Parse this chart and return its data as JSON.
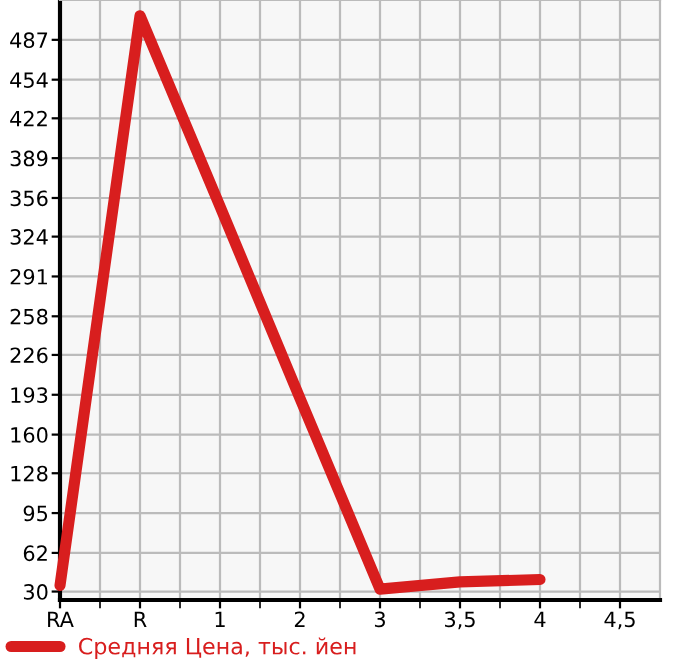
{
  "chart_data": {
    "type": "line",
    "categories": [
      "RA",
      "R",
      "1",
      "2",
      "3",
      "3,5",
      "4",
      "4,5"
    ],
    "series": [
      {
        "name": "Средняя Цена, тыс. йен",
        "color": "#d81e1e",
        "values": [
          35,
          507,
          349,
          190,
          32,
          38,
          40,
          null
        ]
      }
    ],
    "ylim": [
      23,
      520
    ],
    "yticks": [
      30,
      62,
      95,
      128,
      160,
      193,
      226,
      258,
      291,
      324,
      356,
      389,
      422,
      454,
      487
    ],
    "grid": true,
    "legend": "bottom left",
    "marker": "none",
    "line_style": "solid"
  }
}
